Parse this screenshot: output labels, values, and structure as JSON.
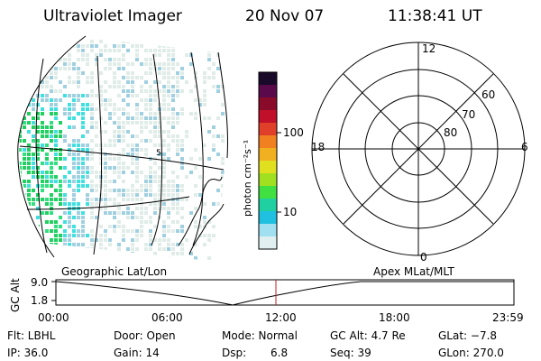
{
  "header": {
    "title": "Ultraviolet Imager",
    "date": "20 Nov 07",
    "time": "11:38:41 UT"
  },
  "colorbar": {
    "unit_label": "photon cm⁻²s⁻¹",
    "ticks": [
      "100",
      "10"
    ],
    "colors": [
      "#1a0a2a",
      "#5a0a4a",
      "#8a0a2a",
      "#c0102a",
      "#e0402a",
      "#f08020",
      "#f0b020",
      "#e0e020",
      "#a0e020",
      "#40e040",
      "#20d0a0",
      "#20c0e0",
      "#a0e0f0",
      "#e0f0f0"
    ]
  },
  "image_panel": {
    "aurora_colors": [
      "#20d060",
      "#30e080",
      "#40e0e0",
      "#a0d0e0",
      "#e0ece8"
    ],
    "spot_label": "5"
  },
  "polar_plot": {
    "top_label": "12",
    "bottom_label": "0",
    "left_label": "18",
    "right_label": "6",
    "ring_labels": [
      "60",
      "70",
      "80"
    ]
  },
  "timeline": {
    "left_title": "Geographic Lat/Lon",
    "right_title": "Apex MLat/MLT",
    "axis_label": "GC Alt",
    "y_max": "9.0",
    "y_min": "1.8",
    "times": [
      "00:00",
      "06:00",
      "12:00",
      "18:00",
      "23:59"
    ],
    "marker_color": "#c02020"
  },
  "status": {
    "flt": "Flt: LBHL",
    "door": "Door: Open",
    "mode": "Mode: Normal",
    "gc_alt": "GC Alt: 4.7 Re",
    "glat": "GLat: −7.8",
    "ip": "IP: 36.0",
    "gain": "Gain: 14",
    "dsp_label": "Dsp:",
    "dsp_value": "6.8",
    "seq": "Seq: 39",
    "glon": "GLon: 270.0"
  }
}
